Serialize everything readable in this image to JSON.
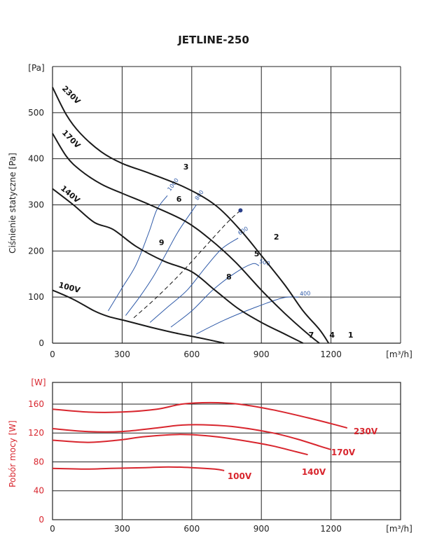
{
  "chart_data": [
    {
      "type": "line",
      "title": "JETLINE-250",
      "xlabel": "[m³/h]",
      "ylabel": "Ciśnienie statyczne [Pa]",
      "yunit": "[Pa]",
      "xlim": [
        0,
        1500
      ],
      "ylim": [
        0,
        600
      ],
      "xticks": [
        0,
        300,
        600,
        900,
        1200
      ],
      "yticks": [
        0,
        100,
        200,
        300,
        400,
        500
      ],
      "grid": true,
      "series": [
        {
          "name": "230V",
          "points": [
            [
              0,
              555
            ],
            [
              60,
              495
            ],
            [
              120,
              455
            ],
            [
              210,
              415
            ],
            [
              300,
              390
            ],
            [
              420,
              368
            ],
            [
              570,
              338
            ],
            [
              700,
              300
            ],
            [
              810,
              245
            ],
            [
              900,
              190
            ],
            [
              1000,
              127
            ],
            [
              1080,
              70
            ],
            [
              1150,
              30
            ],
            [
              1190,
              0
            ]
          ]
        },
        {
          "name": "170V",
          "points": [
            [
              0,
              455
            ],
            [
              60,
              405
            ],
            [
              120,
              375
            ],
            [
              210,
              345
            ],
            [
              300,
              325
            ],
            [
              420,
              300
            ],
            [
              570,
              265
            ],
            [
              680,
              225
            ],
            [
              790,
              175
            ],
            [
              900,
              115
            ],
            [
              1000,
              65
            ],
            [
              1100,
              20
            ],
            [
              1150,
              0
            ]
          ]
        },
        {
          "name": "140V",
          "points": [
            [
              0,
              335
            ],
            [
              90,
              300
            ],
            [
              180,
              262
            ],
            [
              260,
              247
            ],
            [
              360,
              210
            ],
            [
              480,
              178
            ],
            [
              600,
              155
            ],
            [
              700,
              115
            ],
            [
              800,
              75
            ],
            [
              900,
              45
            ],
            [
              1000,
              20
            ],
            [
              1080,
              0
            ]
          ]
        },
        {
          "name": "100V",
          "points": [
            [
              0,
              115
            ],
            [
              90,
              95
            ],
            [
              180,
              70
            ],
            [
              240,
              58
            ],
            [
              320,
              48
            ],
            [
              420,
              35
            ],
            [
              530,
              22
            ],
            [
              630,
              12
            ],
            [
              740,
              0
            ]
          ]
        }
      ],
      "curve_labels": [
        {
          "text": "230V"
        },
        {
          "text": "170V"
        },
        {
          "text": "140V"
        },
        {
          "text": "100V"
        }
      ],
      "point_labels": [
        {
          "text": "1",
          "x": 1285,
          "y": 12
        },
        {
          "text": "2",
          "x": 965,
          "y": 225
        },
        {
          "text": "3",
          "x": 575,
          "y": 377
        },
        {
          "text": "4",
          "x": 1205,
          "y": 12
        },
        {
          "text": "5",
          "x": 880,
          "y": 188
        },
        {
          "text": "6",
          "x": 545,
          "y": 307
        },
        {
          "text": "7",
          "x": 1115,
          "y": 12
        },
        {
          "text": "8",
          "x": 760,
          "y": 138
        },
        {
          "text": "9",
          "x": 470,
          "y": 213
        }
      ],
      "iso_lines": [
        {
          "label": "1000",
          "points": [
            [
              240,
              70
            ],
            [
              300,
              120
            ],
            [
              360,
              170
            ],
            [
              415,
              240
            ],
            [
              450,
              290
            ],
            [
              495,
              320
            ]
          ]
        },
        {
          "label": "800",
          "points": [
            [
              315,
              60
            ],
            [
              375,
              100
            ],
            [
              435,
              145
            ],
            [
              490,
              195
            ],
            [
              545,
              245
            ],
            [
              620,
              300
            ]
          ]
        },
        {
          "label": "600",
          "points": [
            [
              420,
              45
            ],
            [
              500,
              80
            ],
            [
              580,
              115
            ],
            [
              660,
              165
            ],
            [
              730,
              205
            ],
            [
              800,
              228
            ]
          ]
        },
        {
          "label": "500",
          "points": [
            [
              510,
              35
            ],
            [
              600,
              70
            ],
            [
              690,
              115
            ],
            [
              780,
              150
            ],
            [
              860,
              172
            ],
            [
              890,
              168
            ]
          ]
        },
        {
          "label": "400",
          "points": [
            [
              620,
              20
            ],
            [
              740,
              50
            ],
            [
              860,
              75
            ],
            [
              990,
              98
            ],
            [
              1060,
              100
            ]
          ]
        }
      ],
      "system_curve": {
        "points": [
          [
            350,
            55
          ],
          [
            450,
            100
          ],
          [
            550,
            150
          ],
          [
            650,
            205
          ],
          [
            750,
            260
          ],
          [
            810,
            288
          ]
        ],
        "marker": [
          810,
          288
        ]
      }
    },
    {
      "type": "line",
      "xlabel": "[m³/h]",
      "ylabel": "Pobór mocy [W]",
      "yunit": "[W]",
      "xlim": [
        0,
        1500
      ],
      "ylim": [
        0,
        190
      ],
      "xticks": [
        0,
        300,
        600,
        900,
        1200
      ],
      "yticks": [
        0,
        40,
        80,
        120,
        160
      ],
      "grid": true,
      "color": "#d8262e",
      "series": [
        {
          "name": "230V",
          "points": [
            [
              0,
              153
            ],
            [
              150,
              149
            ],
            [
              300,
              149
            ],
            [
              450,
              153
            ],
            [
              560,
              160
            ],
            [
              680,
              162
            ],
            [
              800,
              160
            ],
            [
              950,
              152
            ],
            [
              1100,
              141
            ],
            [
              1200,
              133
            ],
            [
              1270,
              127
            ]
          ]
        },
        {
          "name": "170V",
          "points": [
            [
              0,
              126
            ],
            [
              150,
              122
            ],
            [
              300,
              122
            ],
            [
              450,
              127
            ],
            [
              560,
              131
            ],
            [
              680,
              131
            ],
            [
              800,
              128
            ],
            [
              950,
              120
            ],
            [
              1050,
              112
            ],
            [
              1150,
              102
            ],
            [
              1200,
              97
            ]
          ]
        },
        {
          "name": "140V",
          "points": [
            [
              0,
              110
            ],
            [
              150,
              107
            ],
            [
              280,
              110
            ],
            [
              400,
              115
            ],
            [
              550,
              118
            ],
            [
              700,
              115
            ],
            [
              850,
              108
            ],
            [
              950,
              102
            ],
            [
              1050,
              94
            ],
            [
              1100,
              90
            ]
          ]
        },
        {
          "name": "100V",
          "points": [
            [
              0,
              71
            ],
            [
              150,
              70
            ],
            [
              250,
              71
            ],
            [
              400,
              72
            ],
            [
              500,
              73
            ],
            [
              600,
              72
            ],
            [
              700,
              70
            ],
            [
              740,
              68
            ]
          ]
        }
      ],
      "curve_labels": [
        {
          "text": "230V"
        },
        {
          "text": "170V"
        },
        {
          "text": "140V"
        },
        {
          "text": "100V"
        }
      ]
    }
  ]
}
